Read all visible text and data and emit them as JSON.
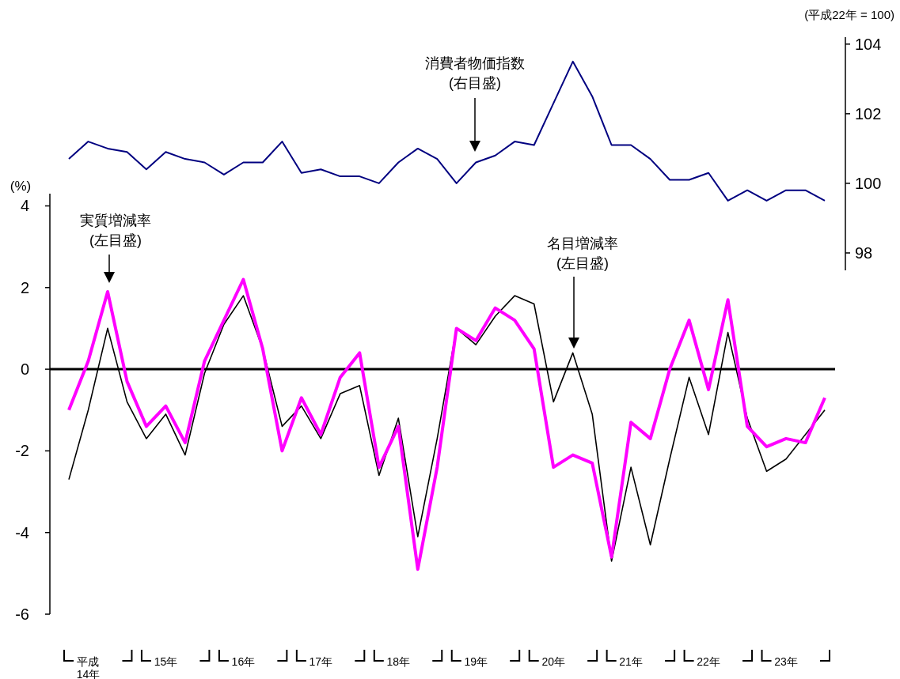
{
  "chart_data": [
    {
      "type": "line",
      "categories": [
        null,
        null,
        null,
        null,
        null,
        null,
        null,
        null,
        null,
        null,
        null,
        null,
        null,
        null,
        null,
        null,
        null,
        null,
        null,
        null,
        null,
        null,
        null,
        null,
        null,
        null,
        null,
        null,
        null,
        null,
        null,
        null,
        null,
        null,
        null,
        null,
        null,
        null,
        null,
        null
      ],
      "series": [
        {
          "color": "#000080",
          "values": [
            100.7,
            101.2,
            101.0,
            100.9,
            100.4,
            100.9,
            100.7,
            100.6,
            100.25,
            100.6,
            100.6,
            101.2,
            100.3,
            100.4,
            100.2,
            100.2,
            100.0,
            100.6,
            101.0,
            100.7,
            100.0,
            100.6,
            100.8,
            101.2,
            101.1,
            102.3,
            103.5,
            102.5,
            101.1,
            101.1,
            100.7,
            100.1,
            100.1,
            100.3,
            99.5,
            99.8,
            99.5,
            99.8,
            99.8,
            99.5
          ]
        }
      ],
      "ylim": [
        97.5,
        104.2
      ],
      "yticks": [
        98,
        100,
        102,
        104
      ],
      "ylabel": "(平成22年 = 100)",
      "tick_labels": "y",
      "annotations": [
        "消費者物価指数\n(右目盛)"
      ]
    },
    {
      "type": "line",
      "categories": [
        null,
        "平成\n14年",
        null,
        null,
        null,
        "15年",
        null,
        null,
        null,
        "16年",
        null,
        null,
        null,
        "17年",
        null,
        null,
        null,
        "18年",
        null,
        null,
        null,
        "19年",
        null,
        null,
        null,
        "20年",
        null,
        null,
        null,
        "21年",
        null,
        null,
        null,
        "22年",
        null,
        null,
        null,
        "23年",
        null,
        null
      ],
      "series": [
        {
          "color": "#ff00ff",
          "values": [
            -1.0,
            0.2,
            1.9,
            -0.3,
            -1.4,
            -0.9,
            -1.8,
            0.2,
            1.2,
            2.2,
            0.5,
            -2.0,
            -0.7,
            -1.6,
            -0.2,
            0.4,
            -2.4,
            -1.4,
            -4.9,
            -2.4,
            1.0,
            0.7,
            1.5,
            1.2,
            0.5,
            -2.4,
            -2.1,
            -2.3,
            -4.6,
            -1.3,
            -1.7,
            0.0,
            1.2,
            -0.5,
            1.7,
            -1.4,
            -1.9,
            -1.7,
            -1.8,
            -0.7
          ]
        },
        {
          "color": "#000000",
          "values": [
            -2.7,
            -1.0,
            1.0,
            -0.8,
            -1.7,
            -1.1,
            -2.1,
            -0.1,
            1.1,
            1.8,
            0.5,
            -1.4,
            -0.9,
            -1.7,
            -0.6,
            -0.4,
            -2.6,
            -1.2,
            -4.1,
            -1.7,
            1.0,
            0.6,
            1.3,
            1.8,
            1.6,
            -0.8,
            0.4,
            -1.1,
            -4.7,
            -2.4,
            -4.3,
            -2.2,
            -0.2,
            -1.6,
            0.9,
            -1.2,
            -2.5,
            -2.2,
            -1.6,
            -1.0
          ]
        }
      ],
      "ylim": [
        -6,
        4.3
      ],
      "yticks": [
        {
          "value": -6,
          "label": "-6"
        },
        {
          "value": -4,
          "label": "-4"
        },
        {
          "value": -2,
          "label": "-2"
        },
        0,
        2,
        4
      ],
      "ylabel": "(%)",
      "ref_lines": [
        {
          "axis": "y",
          "value": 0,
          "color": "#000000"
        }
      ],
      "annotations": [
        "実質増減率\n(左目盛)",
        "名目増減率\n(左目盛)"
      ]
    }
  ]
}
